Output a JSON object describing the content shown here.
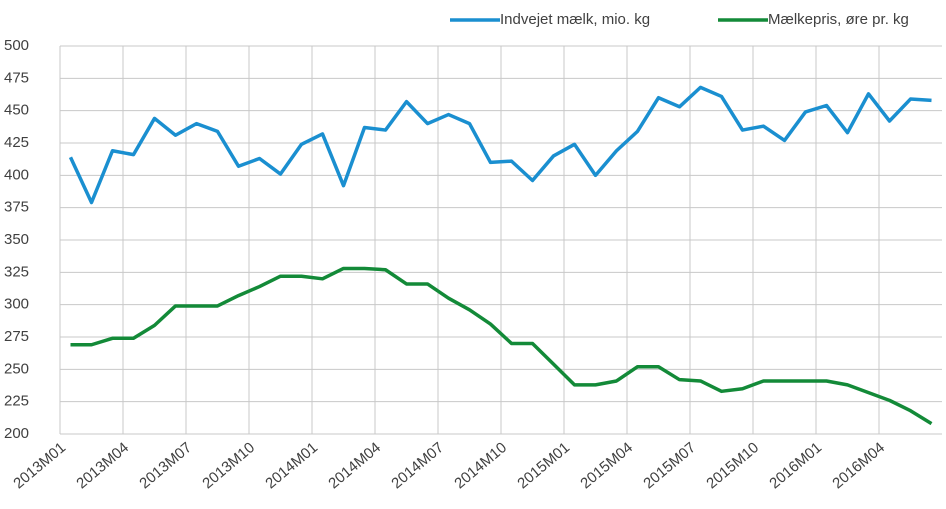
{
  "chart_data": {
    "type": "line",
    "categories": [
      "2013M01",
      null,
      null,
      "2013M04",
      null,
      null,
      "2013M07",
      null,
      null,
      "2013M10",
      null,
      null,
      "2014M01",
      null,
      null,
      "2014M04",
      null,
      null,
      "2014M07",
      null,
      null,
      "2014M10",
      null,
      null,
      "2015M01",
      null,
      null,
      "2015M04",
      null,
      null,
      "2015M07",
      null,
      null,
      "2015M10",
      null,
      null,
      "2016M01",
      null,
      null,
      "2016M04",
      null,
      null
    ],
    "series": [
      {
        "name": "Indvejet mælk, mio. kg",
        "color": "#1a8fd0",
        "values": [
          414,
          379,
          419,
          416,
          444,
          431,
          440,
          434,
          407,
          413,
          401,
          424,
          432,
          392,
          437,
          435,
          457,
          440,
          447,
          440,
          410,
          411,
          396,
          415,
          424,
          400,
          419,
          434,
          460,
          453,
          468,
          461,
          435,
          438,
          427,
          449,
          454,
          433,
          463,
          442,
          459,
          458
        ]
      },
      {
        "name": "Mælkepris, øre pr. kg",
        "color": "#138a38",
        "values": [
          269,
          269,
          274,
          274,
          284,
          299,
          299,
          299,
          307,
          314,
          322,
          322,
          320,
          328,
          328,
          327,
          316,
          316,
          305,
          296,
          285,
          270,
          270,
          254,
          238,
          238,
          241,
          252,
          252,
          242,
          241,
          233,
          235,
          241,
          241,
          241,
          241,
          238,
          232,
          226,
          218,
          208
        ]
      }
    ],
    "ylim": [
      200,
      500
    ],
    "yticks": [
      200,
      225,
      250,
      275,
      300,
      325,
      350,
      375,
      400,
      425,
      450,
      475,
      500
    ],
    "grid": true,
    "legend": "top-right"
  }
}
